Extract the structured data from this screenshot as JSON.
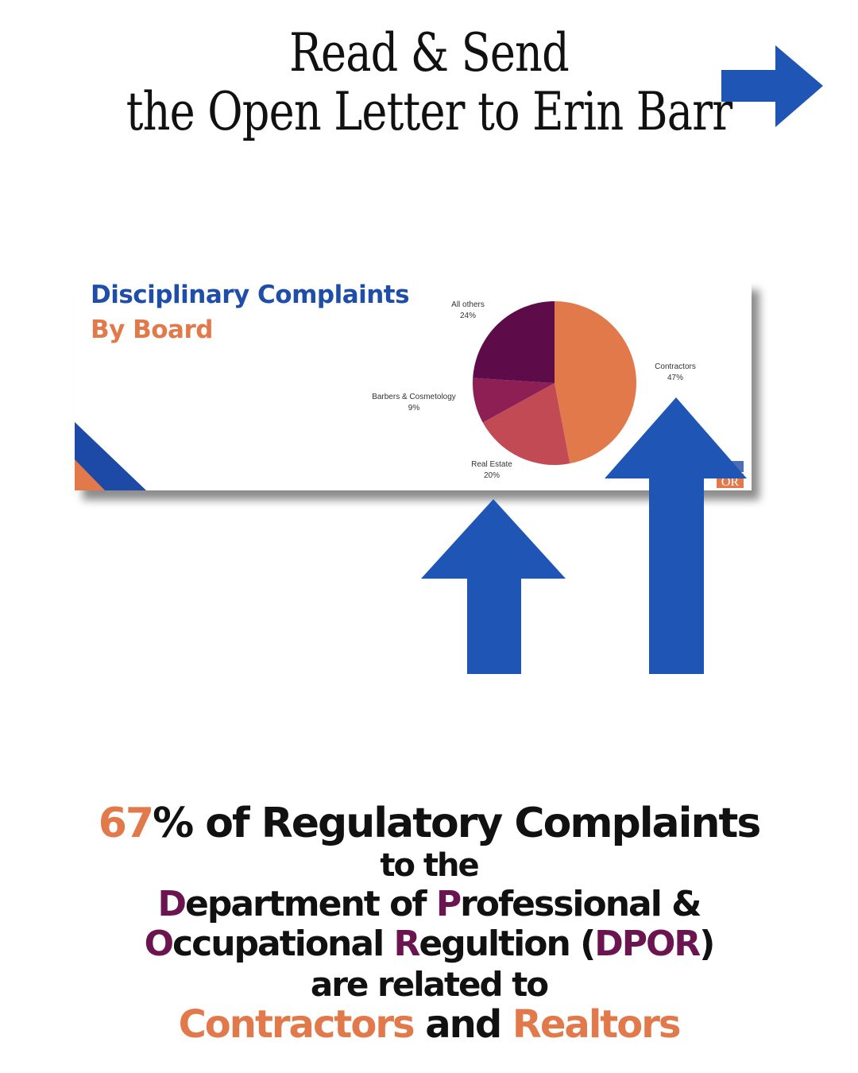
{
  "headline": {
    "line1": "Read & Send",
    "line2": "the Open Letter to Erin Barr"
  },
  "colors": {
    "arrow": "#1f55b5",
    "orange": "#e2794b",
    "purple": "#6b1550",
    "title_blue": "#1f4ea8"
  },
  "chart_data": {
    "type": "pie",
    "title": "Disciplinary Complaints",
    "subtitle": "By Board",
    "slices": [
      {
        "label": "Contractors",
        "value": 47,
        "display": "47%",
        "color": "#e2794b"
      },
      {
        "label": "Real Estate",
        "value": 20,
        "display": "20%",
        "color": "#c24a55"
      },
      {
        "label": "Barbers & Cosmetology",
        "value": 9,
        "display": "9%",
        "color": "#8e1f55"
      },
      {
        "label": "All others",
        "value": 24,
        "display": "24%",
        "color": "#5e0b4a"
      }
    ]
  },
  "logo_text": "OR",
  "bottom": {
    "line1_number": "67",
    "line1_rest": "% of Regulatory Complaints",
    "line2": "to the",
    "line3_D": "D",
    "line3_a": "epartment of ",
    "line3_P": "P",
    "line3_b": "rofessional &",
    "line4_O": "O",
    "line4_a": "ccupational ",
    "line4_R": "R",
    "line4_b": "egultion (",
    "line4_dpor": "DPOR",
    "line4_c": ")",
    "line5": "are related to",
    "line6_a": "Contractors",
    "line6_b": " and ",
    "line6_c": "Realtors"
  }
}
